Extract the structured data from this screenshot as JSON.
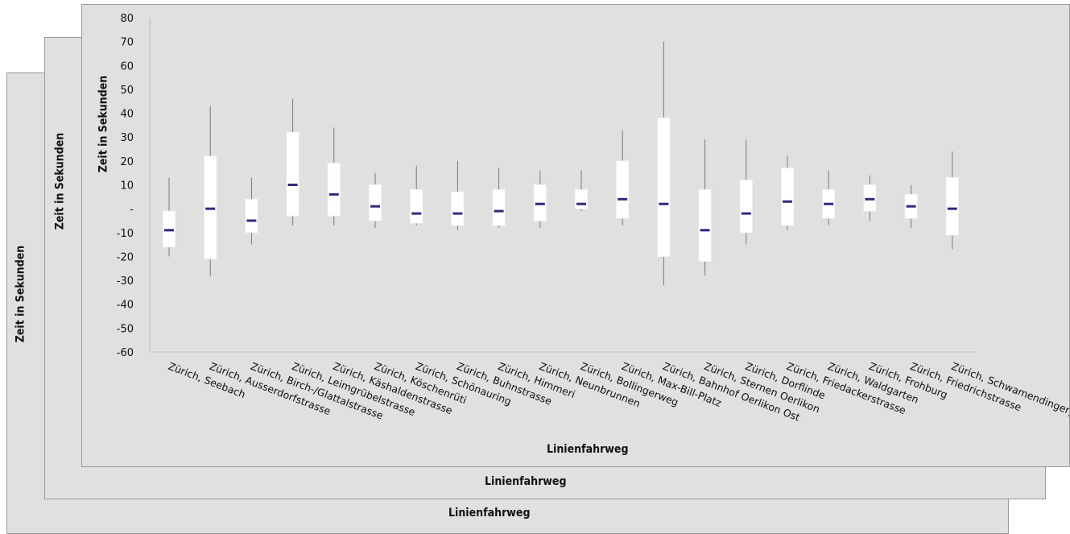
{
  "chart_data": {
    "type": "box",
    "ylabel": "Zeit in Sekunden",
    "xlabel": "Linienfahrweg",
    "ylim": [
      -60,
      80
    ],
    "yticks": [
      "80",
      "70",
      "60",
      "50",
      "40",
      "30",
      "20",
      "10",
      "-",
      "-10",
      "-20",
      "-30",
      "-40",
      "-50",
      "-60"
    ],
    "ytick_values": [
      80,
      70,
      60,
      50,
      40,
      30,
      20,
      10,
      0,
      -10,
      -20,
      -30,
      -40,
      -50,
      -60
    ],
    "grid": false,
    "legend": "none",
    "categories": [
      "Zürich, Seebach",
      "Zürich, Ausserdorfstrasse",
      "Zürich, Birch-/Glattalstrasse",
      "Zürich, Leimgrübelstrasse",
      "Zürich, Käshaldenstrasse",
      "Zürich, Köschenrüti",
      "Zürich, Schönauring",
      "Zürich, Buhnstrasse",
      "Zürich, Himmeri",
      "Zürich, Neunbrunnen",
      "Zürich, Bollingerweg",
      "Zürich, Max-Bill-Platz",
      "Zürich, Bahnhof Oerlikon Ost",
      "Zürich, Sternen Oerlikon",
      "Zürich, Dorflinde",
      "Zürich, Friedackerstrasse",
      "Zürich, Waldgarten",
      "Zürich, Frohburg",
      "Zürich, Friedrichstrasse",
      "Zürich, Schwamendingerplatz"
    ],
    "boxes": [
      {
        "min": -20,
        "q1": -16,
        "median": -9,
        "q3": -1,
        "max": 13
      },
      {
        "min": -28,
        "q1": -21,
        "median": 0,
        "q3": 22,
        "max": 43
      },
      {
        "min": -15,
        "q1": -10,
        "median": -5,
        "q3": 4,
        "max": 13
      },
      {
        "min": -7,
        "q1": -3,
        "median": 10,
        "q3": 32,
        "max": 46
      },
      {
        "min": -7,
        "q1": -3,
        "median": 6,
        "q3": 19,
        "max": 34
      },
      {
        "min": -8,
        "q1": -5,
        "median": 1,
        "q3": 10,
        "max": 15
      },
      {
        "min": -7,
        "q1": -6,
        "median": -2,
        "q3": 8,
        "max": 18
      },
      {
        "min": -9,
        "q1": -7,
        "median": -2,
        "q3": 7,
        "max": 20
      },
      {
        "min": -8,
        "q1": -7,
        "median": -1,
        "q3": 8,
        "max": 17
      },
      {
        "min": -8,
        "q1": -5,
        "median": 2,
        "q3": 10,
        "max": 16
      },
      {
        "min": -1,
        "q1": 0,
        "median": 2,
        "q3": 8,
        "max": 16
      },
      {
        "min": -7,
        "q1": -4,
        "median": 4,
        "q3": 20,
        "max": 33
      },
      {
        "min": -32,
        "q1": -20,
        "median": 2,
        "q3": 38,
        "max": 70
      },
      {
        "min": -28,
        "q1": -22,
        "median": -9,
        "q3": 8,
        "max": 29
      },
      {
        "min": -15,
        "q1": -10,
        "median": -2,
        "q3": 12,
        "max": 29
      },
      {
        "min": -9,
        "q1": -7,
        "median": 3,
        "q3": 17,
        "max": 22
      },
      {
        "min": -7,
        "q1": -4,
        "median": 2,
        "q3": 8,
        "max": 16
      },
      {
        "min": -5,
        "q1": -1,
        "median": 4,
        "q3": 10,
        "max": 14
      },
      {
        "min": -8,
        "q1": -4,
        "median": 1,
        "q3": 6,
        "max": 10
      },
      {
        "min": -17,
        "q1": -11,
        "median": 0,
        "q3": 13,
        "max": 24
      }
    ]
  },
  "colors": {
    "panel": "#e0e0e0",
    "box_fill": "#ffffff",
    "median": "#2e2a7a",
    "whisker": "#777777",
    "text": "#111111"
  }
}
